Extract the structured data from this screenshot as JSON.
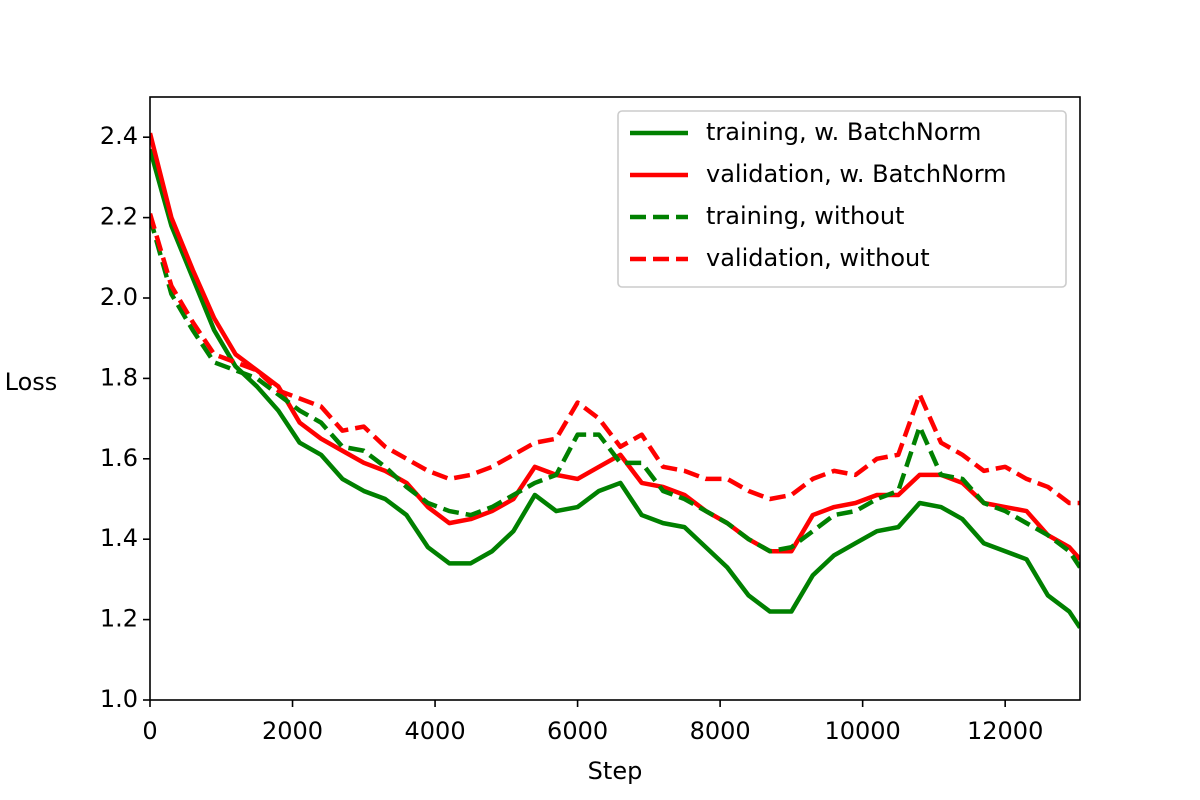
{
  "chart_data": {
    "type": "line",
    "xlabel": "Step",
    "ylabel": "Loss",
    "x": [
      0,
      300,
      600,
      900,
      1200,
      1500,
      1800,
      2100,
      2400,
      2700,
      3000,
      3300,
      3600,
      3900,
      4200,
      4500,
      4800,
      5100,
      5400,
      5700,
      6000,
      6300,
      6600,
      6900,
      7200,
      7500,
      7800,
      8100,
      8400,
      8700,
      9000,
      9300,
      9600,
      9900,
      10200,
      10500,
      10800,
      11100,
      11400,
      11700,
      12000,
      12300,
      12600,
      12900,
      13050
    ],
    "series": [
      {
        "name": "training, w. BatchNorm",
        "color": "#008000",
        "linestyle": "solid",
        "values": [
          2.37,
          2.18,
          2.05,
          1.92,
          1.83,
          1.78,
          1.72,
          1.64,
          1.61,
          1.55,
          1.52,
          1.5,
          1.46,
          1.38,
          1.34,
          1.34,
          1.37,
          1.42,
          1.51,
          1.47,
          1.48,
          1.52,
          1.54,
          1.46,
          1.44,
          1.43,
          1.38,
          1.33,
          1.26,
          1.22,
          1.22,
          1.31,
          1.36,
          1.39,
          1.42,
          1.43,
          1.49,
          1.48,
          1.45,
          1.39,
          1.37,
          1.35,
          1.26,
          1.22,
          1.18
        ]
      },
      {
        "name": "validation, w. BatchNorm",
        "color": "#ff0000",
        "linestyle": "solid",
        "values": [
          2.41,
          2.2,
          2.07,
          1.95,
          1.86,
          1.82,
          1.78,
          1.69,
          1.65,
          1.62,
          1.59,
          1.57,
          1.54,
          1.48,
          1.44,
          1.45,
          1.47,
          1.5,
          1.58,
          1.56,
          1.55,
          1.58,
          1.61,
          1.54,
          1.53,
          1.51,
          1.47,
          1.44,
          1.4,
          1.37,
          1.37,
          1.46,
          1.48,
          1.49,
          1.51,
          1.51,
          1.56,
          1.56,
          1.54,
          1.49,
          1.48,
          1.47,
          1.41,
          1.38,
          1.35
        ]
      },
      {
        "name": "training, without",
        "color": "#008000",
        "linestyle": "dashed",
        "values": [
          2.2,
          2.01,
          1.92,
          1.84,
          1.82,
          1.8,
          1.76,
          1.72,
          1.69,
          1.63,
          1.62,
          1.58,
          1.53,
          1.49,
          1.47,
          1.46,
          1.48,
          1.51,
          1.54,
          1.56,
          1.66,
          1.66,
          1.59,
          1.59,
          1.52,
          1.5,
          1.47,
          1.44,
          1.4,
          1.37,
          1.38,
          1.42,
          1.46,
          1.47,
          1.5,
          1.52,
          1.68,
          1.56,
          1.55,
          1.49,
          1.47,
          1.44,
          1.41,
          1.37,
          1.33
        ]
      },
      {
        "name": "validation, without",
        "color": "#ff0000",
        "linestyle": "dashed",
        "values": [
          2.21,
          2.03,
          1.94,
          1.86,
          1.84,
          1.82,
          1.77,
          1.75,
          1.73,
          1.67,
          1.68,
          1.63,
          1.6,
          1.57,
          1.55,
          1.56,
          1.58,
          1.61,
          1.64,
          1.65,
          1.74,
          1.7,
          1.63,
          1.66,
          1.58,
          1.57,
          1.55,
          1.55,
          1.52,
          1.5,
          1.51,
          1.55,
          1.57,
          1.56,
          1.6,
          1.61,
          1.76,
          1.64,
          1.61,
          1.57,
          1.58,
          1.55,
          1.53,
          1.49,
          1.49
        ]
      }
    ],
    "xlim": [
      0,
      13050
    ],
    "ylim": [
      1.0,
      2.5
    ],
    "xticks": [
      0,
      2000,
      4000,
      6000,
      8000,
      10000,
      12000
    ],
    "yticks": [
      {
        "value": 1.0,
        "label": "1.0"
      },
      1.2,
      1.4,
      1.6,
      1.8,
      {
        "value": 2.0,
        "label": "2.0"
      },
      2.2,
      2.4
    ],
    "legend": "upper right",
    "grid": false
  }
}
